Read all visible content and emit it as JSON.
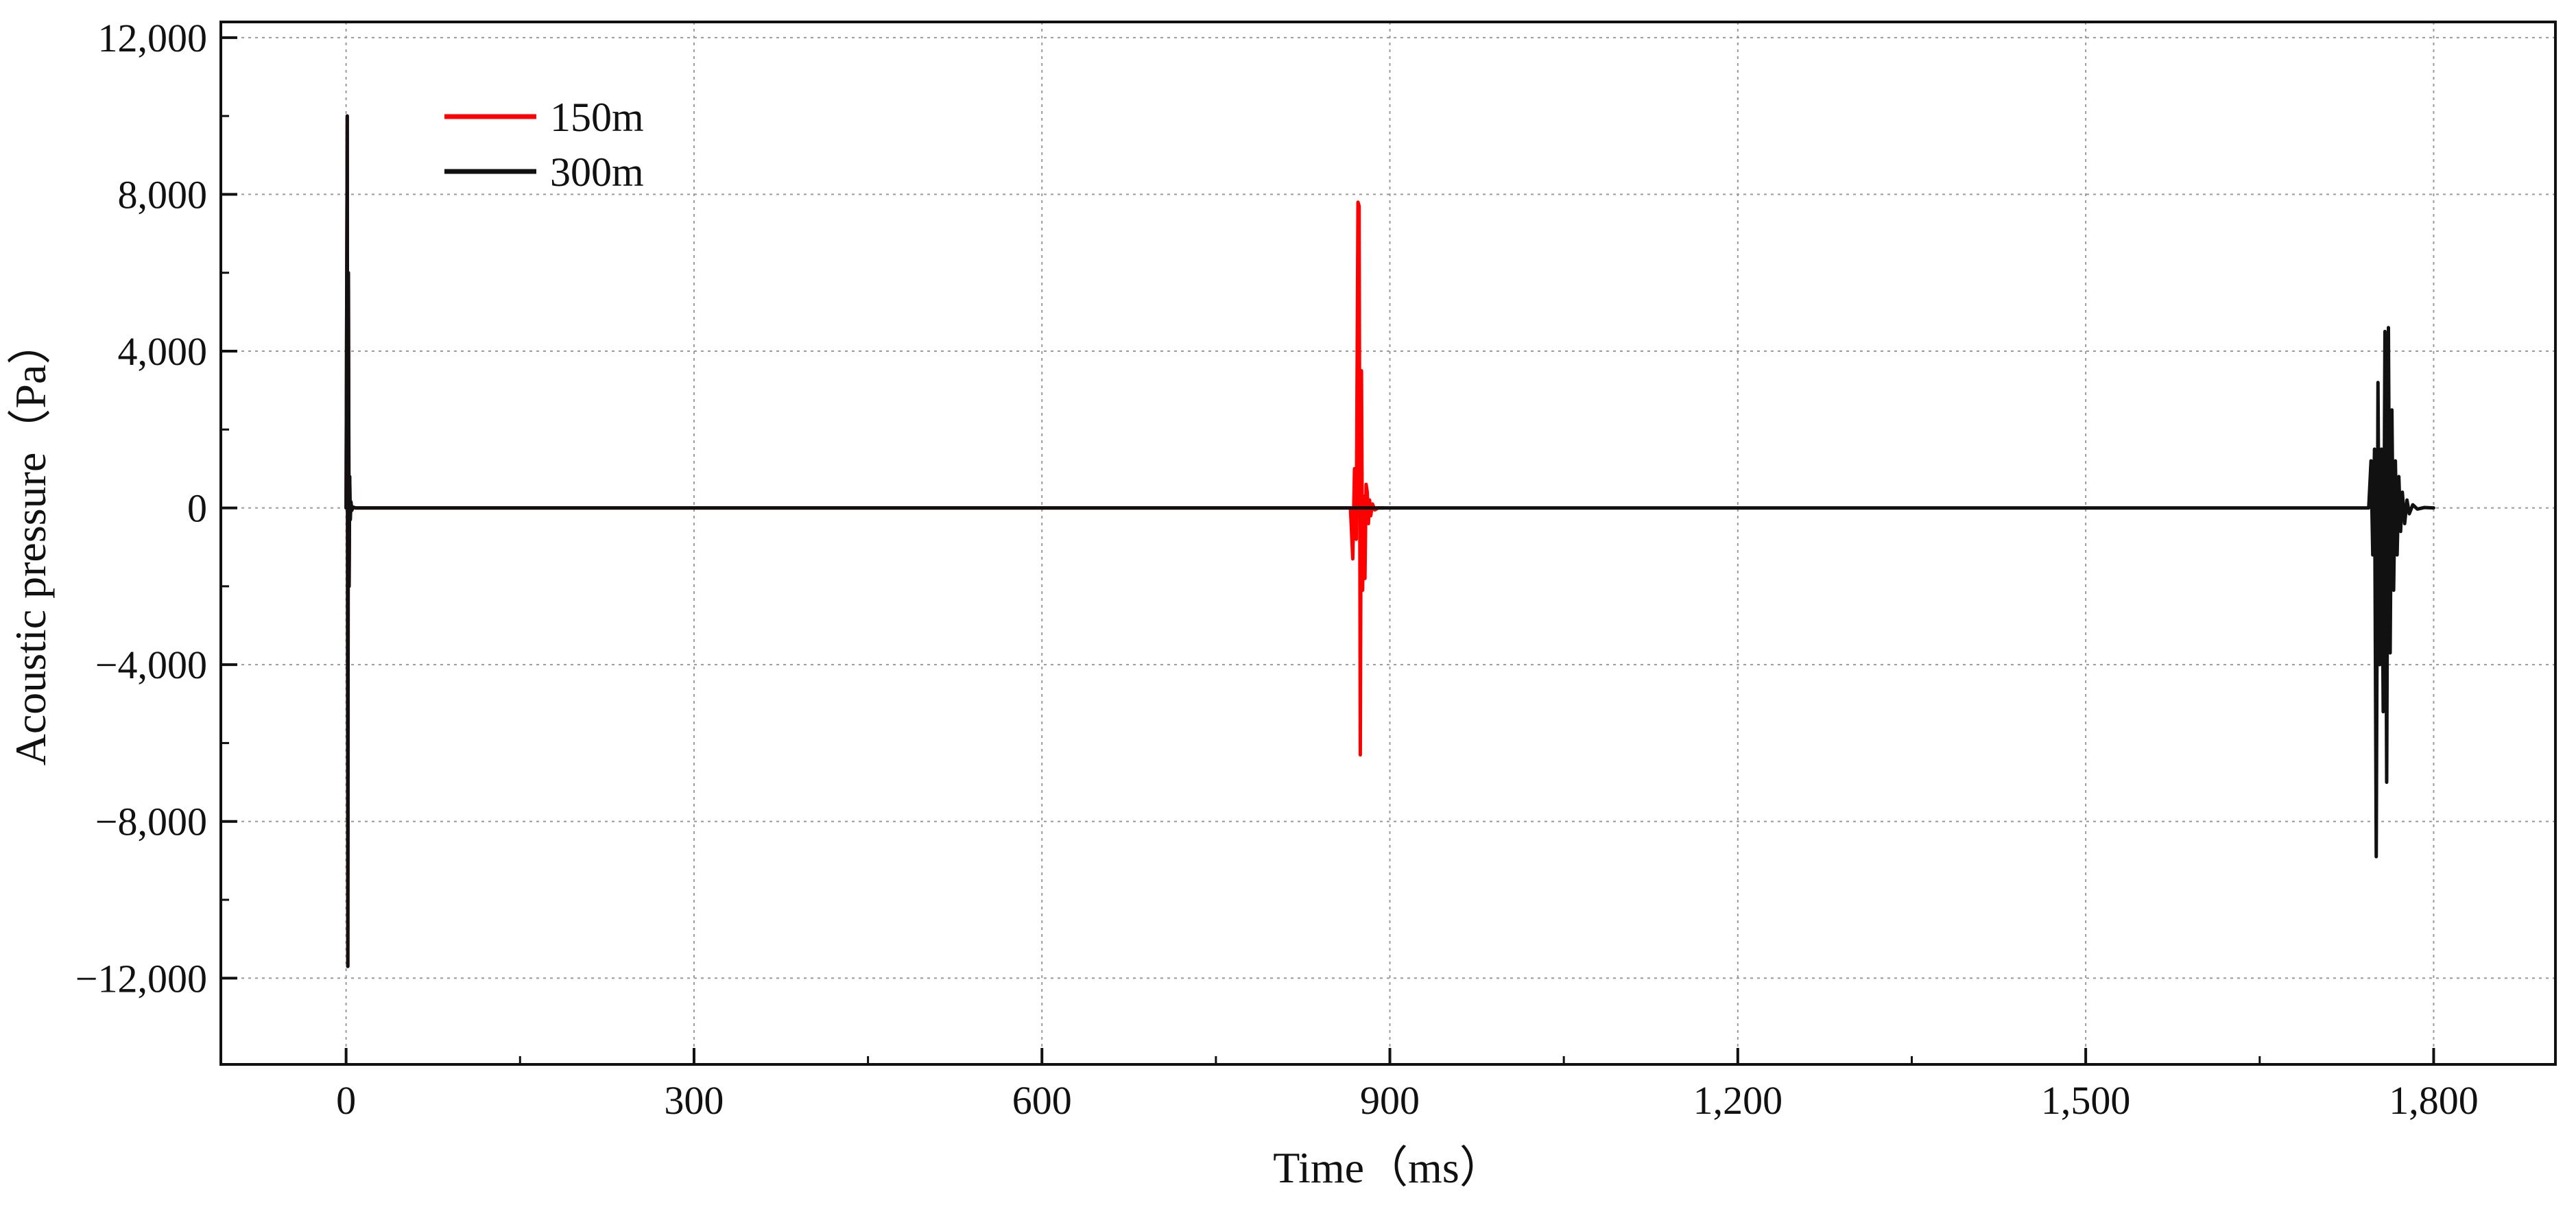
{
  "chart_data": {
    "type": "line",
    "title": "",
    "xlabel": "Time（ms）",
    "ylabel": "Acoustic pressure（Pa）",
    "xlim": [
      -108,
      1905
    ],
    "ylim": [
      -14200,
      12400
    ],
    "xticks": [
      0,
      300,
      600,
      900,
      1200,
      1500,
      1800
    ],
    "xtick_labels": [
      "0",
      "300",
      "600",
      "900",
      "1,200",
      "1,500",
      "1,800"
    ],
    "yticks": [
      -12000,
      -8000,
      -4000,
      0,
      4000,
      8000,
      12000
    ],
    "ytick_labels": [
      "−12,000",
      "−8,000",
      "−4,000",
      "0",
      "4,000",
      "8,000",
      "12,000"
    ],
    "grid": true,
    "legend": "top-left",
    "series": [
      {
        "name": "150m",
        "color": "#ff0000",
        "x": [
          0,
          1,
          1.5,
          2,
          2.6,
          3.1,
          3.6,
          4.2,
          5,
          6,
          8,
          866,
          868,
          869.5,
          871,
          872.5,
          873.5,
          874.5,
          875.5,
          876.5,
          877.5,
          878.5,
          879.5,
          880.5,
          881.5,
          882.5,
          883.5,
          885,
          887,
          890,
          895
        ],
        "values": [
          0,
          10000,
          -11700,
          6000,
          -2000,
          800,
          -300,
          150,
          -60,
          20,
          0,
          0,
          -1300,
          1000,
          -800,
          7800,
          7700,
          -6300,
          3500,
          -2100,
          300,
          -1800,
          600,
          400,
          -400,
          200,
          -200,
          100,
          -50,
          0,
          0
        ]
      },
      {
        "name": "300m",
        "color": "#111111",
        "x": [
          0,
          1,
          1.5,
          2,
          2.6,
          3.1,
          3.6,
          4.2,
          5,
          6,
          8,
          1744,
          1746,
          1747.5,
          1749,
          1750.5,
          1752,
          1753.5,
          1755,
          1756.5,
          1758,
          1759.5,
          1761,
          1762.5,
          1764,
          1765.5,
          1767,
          1768.5,
          1770,
          1771.5,
          1773,
          1775,
          1777,
          1779,
          1782,
          1786,
          1792,
          1800
        ],
        "values": [
          0,
          10000,
          -11700,
          6000,
          -2000,
          800,
          -300,
          150,
          -60,
          20,
          0,
          0,
          1200,
          -1200,
          1500,
          -8900,
          3200,
          -4000,
          1500,
          -5200,
          4500,
          -7000,
          4600,
          -3700,
          2500,
          -2100,
          1200,
          -1200,
          800,
          -600,
          400,
          -400,
          200,
          -150,
          80,
          -30,
          10,
          0
        ]
      }
    ]
  }
}
